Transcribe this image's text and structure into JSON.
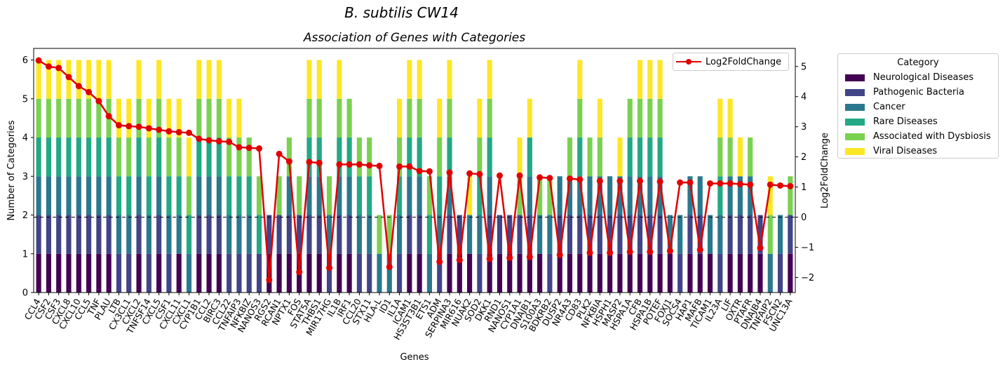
{
  "figure": {
    "suptitle": "B. subtilis CW14"
  },
  "chart_data": {
    "type": "bar",
    "title": "Association of Genes with Categories",
    "xlabel": "Genes",
    "ylabel": "Number of Categories",
    "y2label": "Log2FoldChange",
    "ylim": [
      0,
      6.3
    ],
    "y2lim": [
      -2.5,
      5.6
    ],
    "yticks": [
      0,
      1,
      2,
      3,
      4,
      5,
      6
    ],
    "y2ticks": [
      -2,
      -1,
      0,
      1,
      2,
      3,
      4,
      5
    ],
    "legend_title": "Category",
    "legend_placement": "outside-right",
    "line_legend_placement": "top-right",
    "reference_line": {
      "y2": 0,
      "style": "dashed"
    },
    "categories": [
      "CCL4",
      "CSF2",
      "CSF3",
      "CXCL8",
      "CXCL10",
      "CCL5",
      "TNF",
      "PLAU",
      "LTB",
      "CX3CL1",
      "CXCL2",
      "TNFSF14",
      "CXCL5",
      "CSF1",
      "CXCL11",
      "CXCL1",
      "CYP1B1",
      "CCL2",
      "BIRC3",
      "CCL22",
      "TNFAIP3",
      "NFKBIZ",
      "NANOS3",
      "RGS2",
      "RCAN1",
      "NPTX1",
      "FOS",
      "STAT5A",
      "THBS1",
      "MIR17HG",
      "IL1B",
      "IRF1",
      "CCL20",
      "STX11",
      "HLA-L",
      "ID1",
      "IL1A",
      "ICAM1",
      "HS3ST3B1",
      "ETS1",
      "ADM",
      "SERPINA3",
      "MIR616",
      "NUAK2",
      "SOD2",
      "DKK1",
      "RND1",
      "NANOS1",
      "CYP1A1",
      "DNAJB1",
      "S100A3",
      "BDKRB2",
      "DUSP2",
      "NR4A3",
      "CD83",
      "PLK2",
      "NFKBIA",
      "HSPH1",
      "MASP2",
      "HSPA1A",
      "CFB",
      "HSPA1B",
      "POTEF",
      "FOXJ1",
      "SOCS4",
      "HAP1",
      "MAFB",
      "TICAM1",
      "IL23A",
      "LIF",
      "OXTR",
      "PTAFR",
      "DNAJB4",
      "TNFAIP2",
      "FSCN2",
      "UNC13A"
    ],
    "series": [
      {
        "name": "Neurological Diseases",
        "color": "#440154",
        "values": [
          1,
          1,
          1,
          1,
          1,
          1,
          1,
          1,
          0,
          0,
          1,
          0,
          1,
          0,
          1,
          0,
          1,
          1,
          1,
          0,
          0,
          0,
          0,
          1,
          1,
          1,
          1,
          1,
          1,
          0,
          1,
          1,
          0,
          0,
          0,
          0,
          0,
          1,
          1,
          0,
          0,
          1,
          1,
          1,
          0,
          1,
          1,
          1,
          1,
          1,
          1,
          0,
          1,
          1,
          1,
          1,
          1,
          1,
          1,
          1,
          1,
          1,
          1,
          1,
          0,
          1,
          1,
          1,
          0,
          1,
          1,
          1,
          1,
          0,
          0,
          1
        ]
      },
      {
        "name": "Pathogenic Bacteria",
        "color": "#414487",
        "values": [
          1,
          1,
          1,
          1,
          1,
          1,
          1,
          1,
          1,
          1,
          1,
          1,
          1,
          1,
          0,
          0,
          1,
          1,
          1,
          1,
          1,
          1,
          1,
          1,
          1,
          1,
          1,
          1,
          1,
          1,
          1,
          1,
          1,
          1,
          0,
          0,
          1,
          1,
          1,
          0,
          1,
          1,
          1,
          0,
          1,
          1,
          1,
          1,
          1,
          1,
          0,
          1,
          1,
          1,
          1,
          1,
          1,
          1,
          1,
          1,
          1,
          1,
          1,
          0,
          1,
          1,
          1,
          0,
          1,
          1,
          1,
          1,
          1,
          0,
          1,
          1
        ]
      },
      {
        "name": "Cancer",
        "color": "#2a788e",
        "values": [
          1,
          1,
          1,
          1,
          1,
          1,
          1,
          1,
          1,
          1,
          1,
          1,
          1,
          1,
          1,
          1,
          1,
          1,
          1,
          1,
          1,
          1,
          0,
          0,
          0,
          1,
          0,
          1,
          1,
          1,
          1,
          1,
          1,
          1,
          1,
          1,
          1,
          1,
          1,
          1,
          1,
          1,
          0,
          1,
          1,
          1,
          0,
          0,
          0,
          1,
          1,
          1,
          1,
          1,
          1,
          1,
          1,
          1,
          1,
          1,
          1,
          1,
          1,
          1,
          1,
          1,
          1,
          1,
          1,
          1,
          1,
          1,
          0,
          1,
          1,
          0
        ]
      },
      {
        "name": "Rare Diseases",
        "color": "#22a884",
        "values": [
          1,
          1,
          1,
          1,
          1,
          1,
          1,
          1,
          1,
          1,
          1,
          1,
          1,
          1,
          1,
          1,
          1,
          1,
          1,
          1,
          1,
          1,
          1,
          0,
          0,
          0,
          0,
          1,
          1,
          0,
          1,
          1,
          1,
          1,
          0,
          0,
          1,
          1,
          1,
          1,
          1,
          1,
          0,
          0,
          1,
          1,
          0,
          0,
          0,
          1,
          0,
          0,
          0,
          0,
          1,
          0,
          0,
          0,
          0,
          1,
          1,
          1,
          1,
          0,
          0,
          0,
          0,
          0,
          1,
          0,
          0,
          0,
          0,
          0,
          0,
          0
        ]
      },
      {
        "name": "Associated with Dysbiosis",
        "color": "#7ad151",
        "values": [
          1,
          1,
          1,
          1,
          1,
          1,
          1,
          1,
          1,
          1,
          1,
          1,
          1,
          1,
          1,
          1,
          1,
          1,
          1,
          1,
          1,
          1,
          1,
          0,
          1,
          1,
          1,
          1,
          1,
          1,
          1,
          1,
          1,
          1,
          1,
          1,
          1,
          1,
          1,
          1,
          1,
          1,
          0,
          0,
          1,
          1,
          0,
          0,
          1,
          0,
          1,
          1,
          0,
          1,
          1,
          1,
          1,
          0,
          0,
          1,
          1,
          1,
          1,
          0,
          0,
          0,
          0,
          0,
          1,
          1,
          0,
          1,
          0,
          1,
          0,
          1
        ]
      },
      {
        "name": "Viral Diseases",
        "color": "#fde725",
        "values": [
          1,
          1,
          1,
          1,
          1,
          1,
          1,
          1,
          1,
          1,
          1,
          1,
          1,
          1,
          1,
          1,
          1,
          1,
          1,
          1,
          1,
          0,
          0,
          0,
          0,
          0,
          0,
          1,
          1,
          0,
          1,
          0,
          0,
          0,
          0,
          0,
          1,
          1,
          1,
          0,
          1,
          1,
          0,
          1,
          1,
          1,
          0,
          0,
          1,
          1,
          0,
          0,
          0,
          0,
          1,
          0,
          1,
          0,
          1,
          0,
          1,
          1,
          1,
          0,
          0,
          0,
          0,
          0,
          1,
          1,
          1,
          0,
          0,
          1,
          0,
          0
        ]
      }
    ],
    "line": {
      "name": "Log2FoldChange",
      "color": "#e00000",
      "values": [
        5.2,
        5.0,
        4.95,
        4.65,
        4.35,
        4.15,
        3.85,
        3.35,
        3.05,
        3.02,
        3.0,
        2.95,
        2.9,
        2.85,
        2.82,
        2.8,
        2.6,
        2.55,
        2.52,
        2.5,
        2.32,
        2.3,
        2.28,
        -2.08,
        2.1,
        1.85,
        -1.82,
        1.83,
        1.8,
        -1.68,
        1.75,
        1.75,
        1.75,
        1.72,
        1.7,
        -1.65,
        1.68,
        1.68,
        1.53,
        1.52,
        -1.48,
        1.48,
        -1.42,
        1.45,
        1.43,
        -1.38,
        1.38,
        -1.35,
        1.38,
        -1.32,
        1.32,
        1.3,
        -1.25,
        1.28,
        1.25,
        -1.18,
        1.2,
        -1.18,
        1.2,
        -1.15,
        1.2,
        -1.15,
        1.18,
        -1.12,
        1.15,
        1.15,
        -1.08,
        1.12,
        1.12,
        1.12,
        1.1,
        1.08,
        -1.02,
        1.08,
        1.05,
        1.03
      ]
    }
  }
}
